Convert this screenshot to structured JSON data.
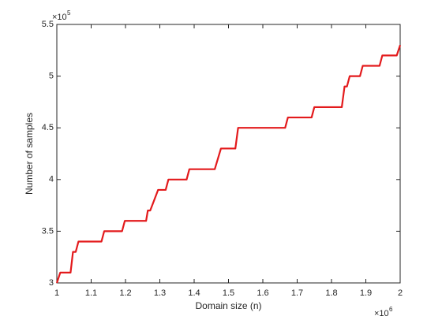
{
  "chart_data": {
    "type": "line",
    "xlabel": "Domain size (n)",
    "ylabel": "Number of samples",
    "x_multiplier": "×10",
    "x_exponent": "6",
    "y_multiplier": "×10",
    "y_exponent": "5",
    "x": [
      1,
      1.01,
      1.04,
      1.047,
      1.055,
      1.063,
      1.13,
      1.138,
      1.19,
      1.198,
      1.26,
      1.265,
      1.272,
      1.295,
      1.317,
      1.325,
      1.378,
      1.386,
      1.46,
      1.478,
      1.52,
      1.528,
      1.665,
      1.673,
      1.742,
      1.75,
      1.83,
      1.838,
      1.845,
      1.853,
      1.883,
      1.891,
      1.94,
      1.948,
      1.99,
      2.0
    ],
    "series": [
      {
        "color": "#e31a1c",
        "values": [
          3.0,
          3.1,
          3.1,
          3.3,
          3.3,
          3.4,
          3.4,
          3.5,
          3.5,
          3.6,
          3.6,
          3.7,
          3.7,
          3.9,
          3.9,
          4.0,
          4.0,
          4.1,
          4.1,
          4.3,
          4.3,
          4.5,
          4.5,
          4.6,
          4.6,
          4.7,
          4.7,
          4.9,
          4.9,
          5.0,
          5.0,
          5.1,
          5.1,
          5.2,
          5.2,
          5.3
        ]
      }
    ],
    "xlim": [
      1,
      2
    ],
    "xticks": [
      1,
      1.1,
      1.2,
      1.3,
      1.4,
      1.5,
      1.6,
      1.7,
      1.8,
      1.9,
      2
    ],
    "ylim": [
      3,
      5.5
    ],
    "yticks": [
      3,
      3.5,
      4,
      4.5,
      5,
      5.5
    ]
  }
}
